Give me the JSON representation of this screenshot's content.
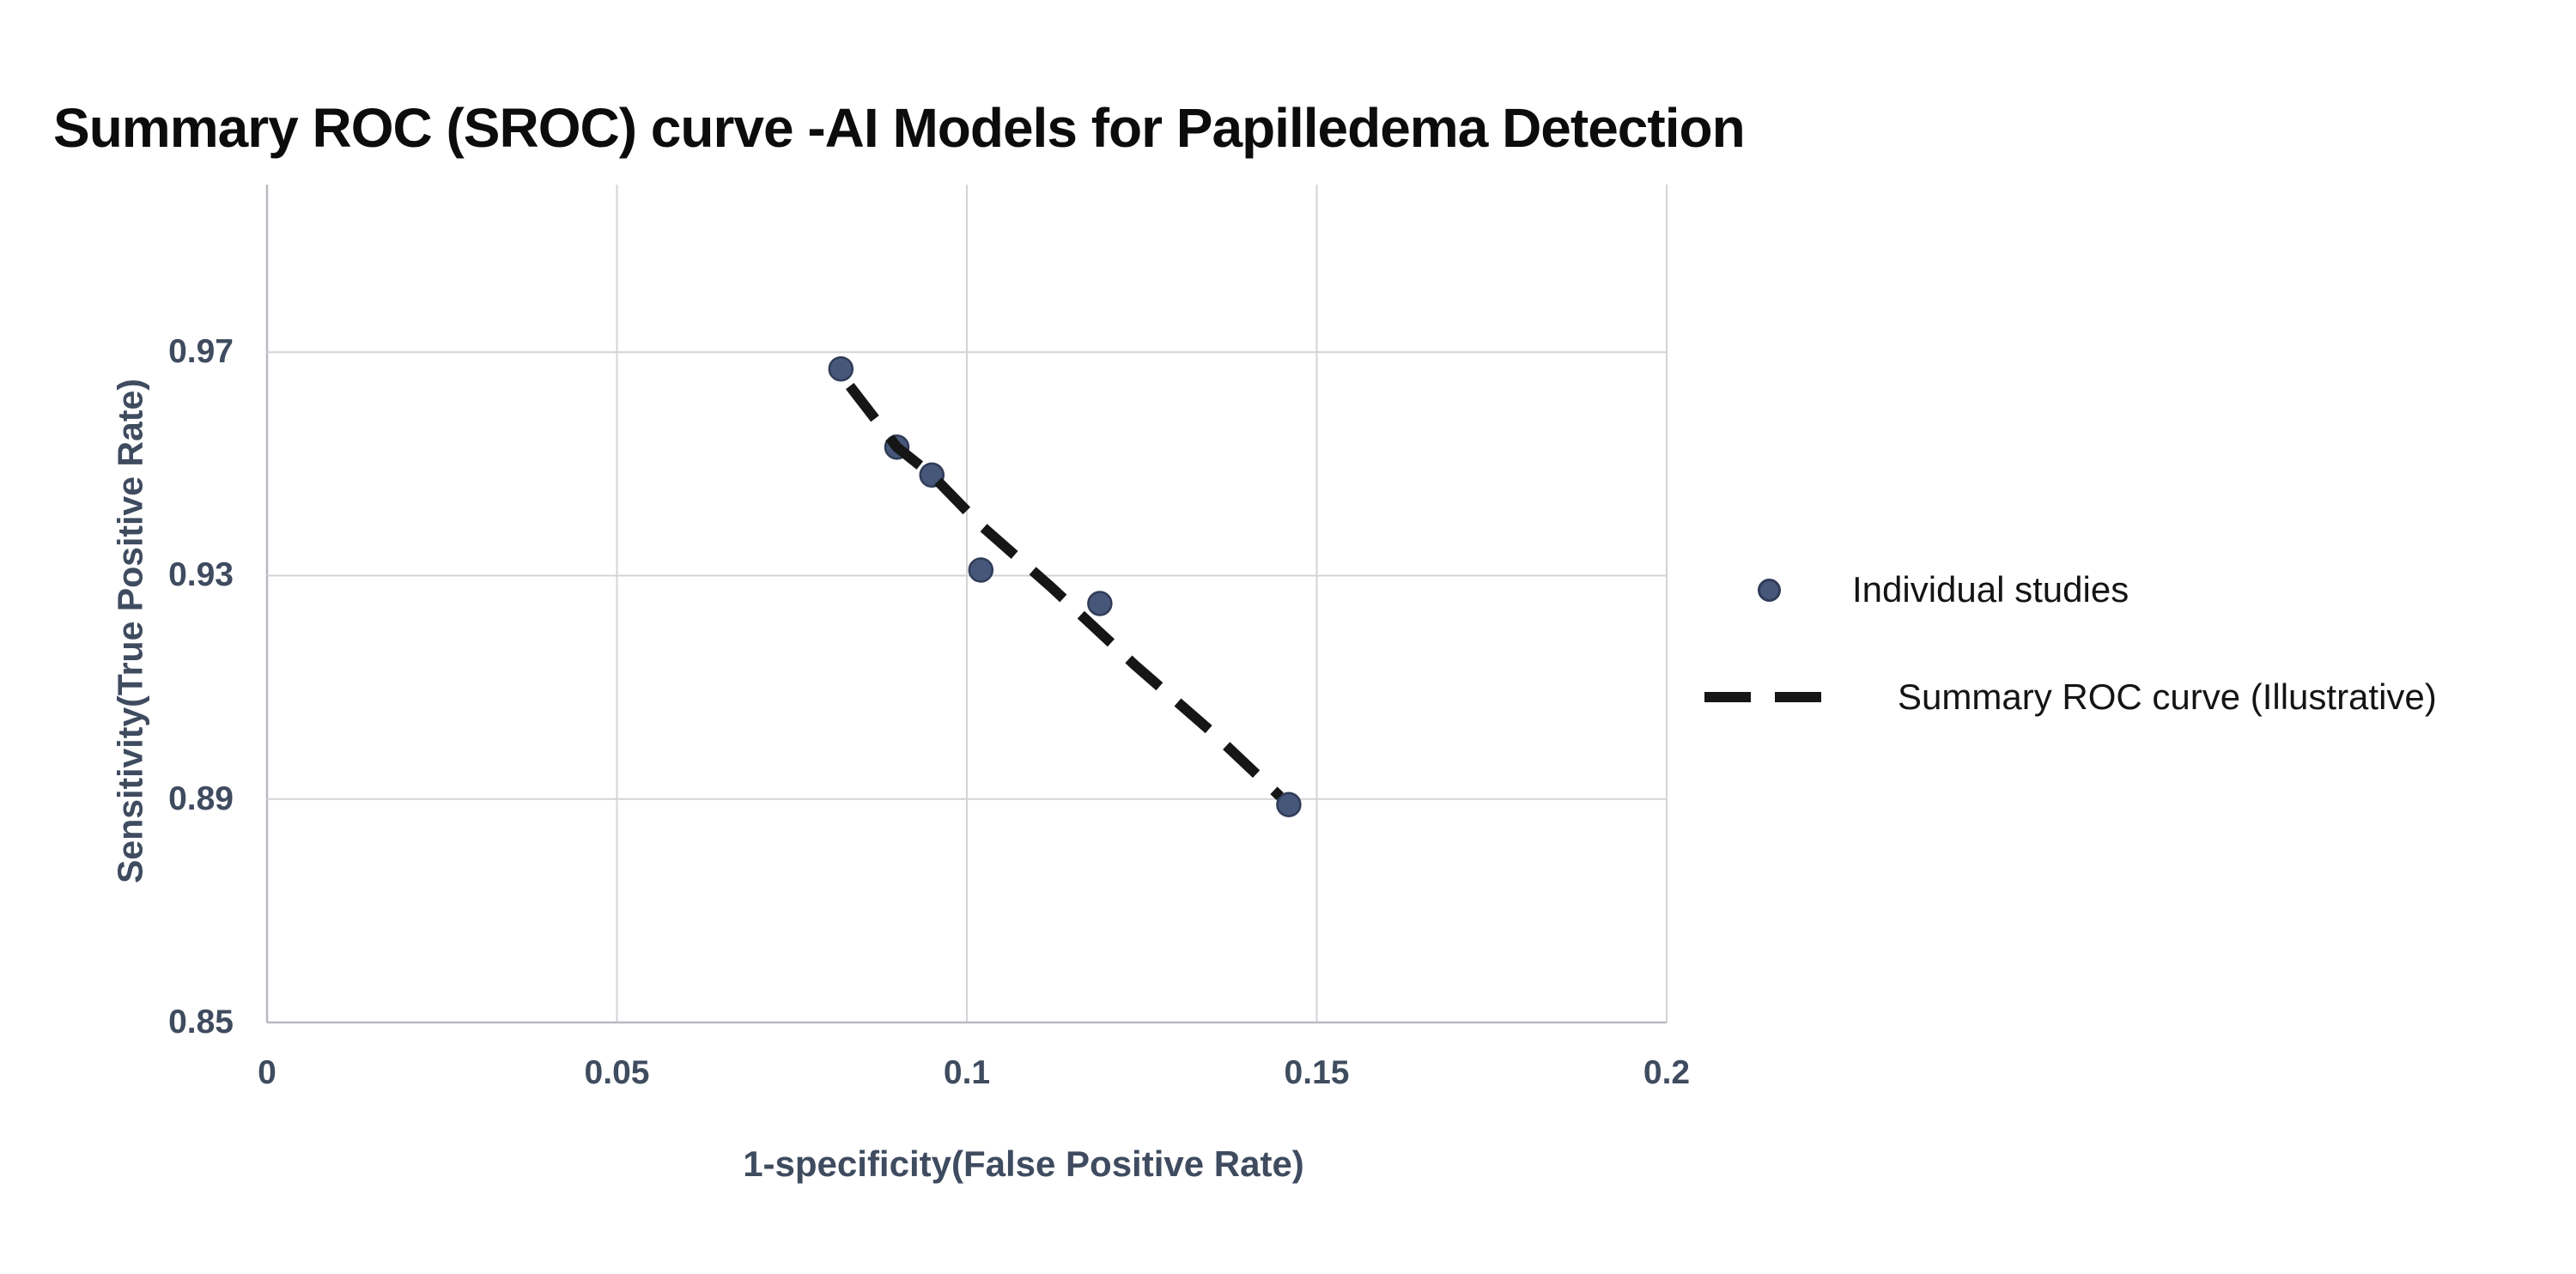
{
  "title": "Summary ROC (SROC) curve -AI Models for Papilledema Detection",
  "legend": {
    "position": "right",
    "items": [
      {
        "label": "Individual studies",
        "marker": "dot",
        "marker_color": "#47577a"
      },
      {
        "label": "Summary ROC curve (Illustrative)",
        "marker": "dashed-line",
        "marker_color": "#161616"
      }
    ]
  },
  "chart_data": {
    "type": "scatter",
    "title": "Summary ROC (SROC) curve -AI Models for Papilledema Detection",
    "xlabel": "1-specificity(False Positive Rate)",
    "ylabel": "Sensitivity(True Positive Rate)",
    "xlim": [
      0,
      0.2
    ],
    "ylim": [
      0.85,
      1.0
    ],
    "x_ticks": [
      0,
      0.05,
      0.1,
      0.15,
      0.2
    ],
    "x_tick_labels": [
      "0",
      "0.05",
      "0.1",
      "0.15",
      "0.2"
    ],
    "y_ticks": [
      0.85,
      0.89,
      0.93,
      0.97
    ],
    "y_tick_labels": [
      "0.85",
      "0.89",
      "0.93",
      "0.97"
    ],
    "grid": true,
    "legend_position": "right",
    "series": [
      {
        "name": "Individual studies",
        "type": "scatter",
        "marker": "circle",
        "marker_color": "#47577a",
        "marker_edge_color": "#303c58",
        "points": [
          [
            0.082,
            0.967
          ],
          [
            0.09,
            0.953
          ],
          [
            0.095,
            0.948
          ],
          [
            0.102,
            0.931
          ],
          [
            0.119,
            0.925
          ],
          [
            0.146,
            0.889
          ]
        ]
      },
      {
        "name": "Summary ROC curve (Illustrative)",
        "type": "line",
        "line_style": "dashed",
        "line_color": "#161616",
        "points": [
          [
            0.082,
            0.966
          ],
          [
            0.09,
            0.953
          ],
          [
            0.095,
            0.948
          ],
          [
            0.102,
            0.939
          ],
          [
            0.112,
            0.928
          ],
          [
            0.124,
            0.914
          ],
          [
            0.135,
            0.902
          ],
          [
            0.146,
            0.889
          ]
        ]
      }
    ],
    "colors": {
      "gridline": "#d2d4d7",
      "axis_line": "#b7bac0",
      "axis_text": "#3f4b5f",
      "title_text": "#0c0c0c",
      "legend_text": "#141414",
      "background": "#ffffff"
    }
  }
}
